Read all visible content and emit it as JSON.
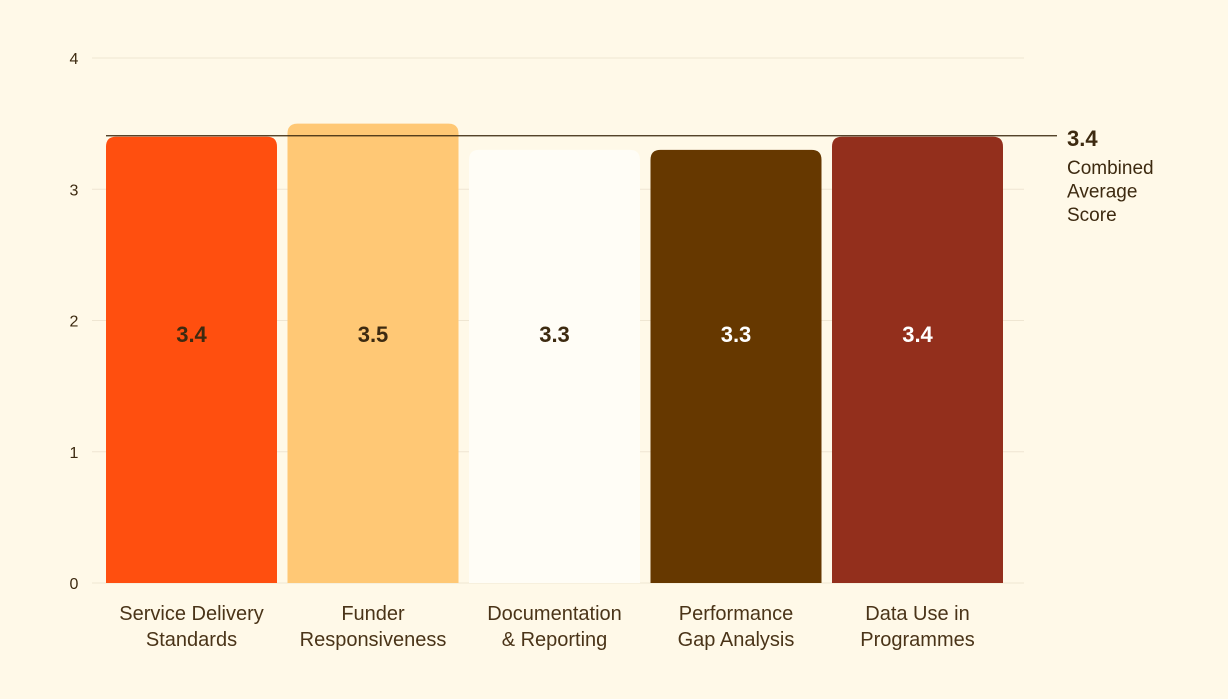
{
  "chart_data": {
    "type": "bar",
    "categories": [
      [
        "Service Delivery",
        "Standards"
      ],
      [
        "Funder",
        "Responsiveness"
      ],
      [
        "Documentation",
        "& Reporting"
      ],
      [
        "Performance",
        "Gap Analysis"
      ],
      [
        "Data Use in",
        "Programmes"
      ]
    ],
    "values": [
      3.4,
      3.5,
      3.3,
      3.3,
      3.4
    ],
    "value_labels": [
      "3.4",
      "3.5",
      "3.3",
      "3.3",
      "3.4"
    ],
    "bar_colors": [
      "#ff4f0f",
      "#ffc875",
      "#fffdf6",
      "#663800",
      "#932f1c"
    ],
    "label_colors": [
      "#3d2a10",
      "#3d2a10",
      "#3d2a10",
      "#ffffff",
      "#ffffff"
    ],
    "ylim": [
      0,
      4
    ],
    "yticks": [
      "0",
      "1",
      "2",
      "3",
      "4"
    ],
    "grid": true,
    "reference_line": {
      "value": 3.4,
      "value_label": "3.4",
      "label_lines": [
        "Combined",
        "Average",
        "Score"
      ]
    }
  }
}
